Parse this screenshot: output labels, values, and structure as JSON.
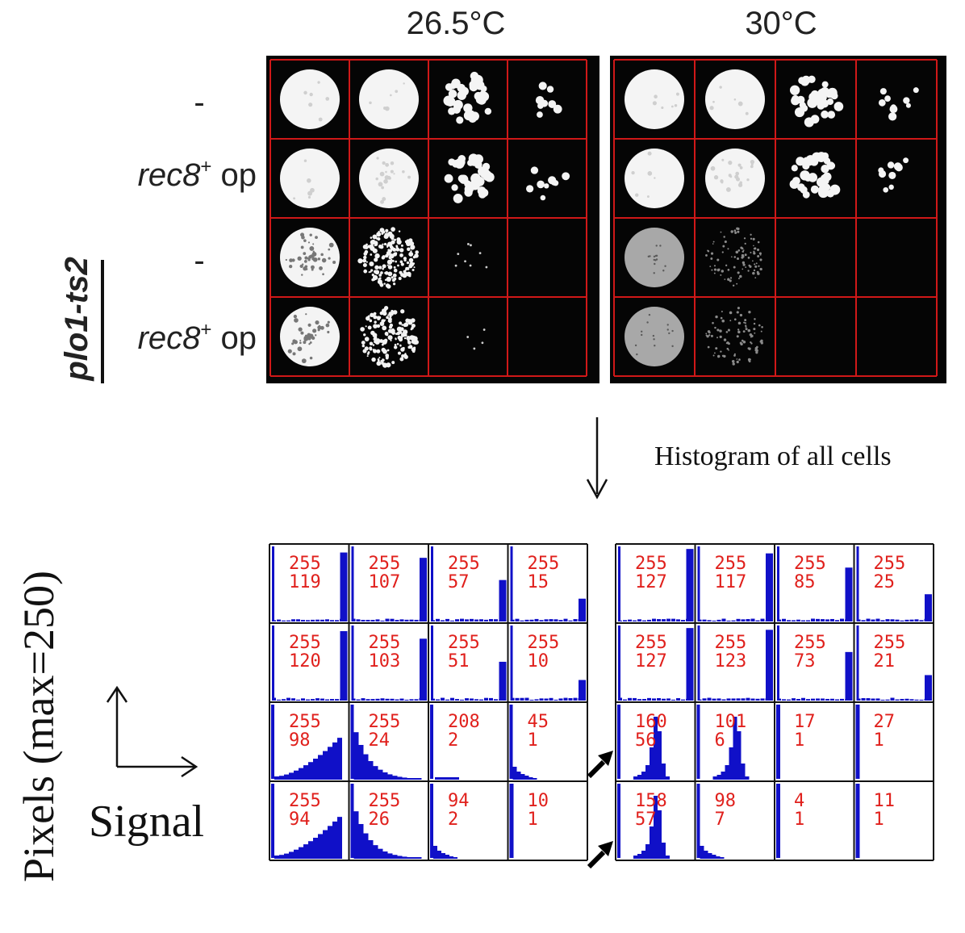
{
  "figure": {
    "temperatures": [
      "26.5°C",
      "30°C"
    ],
    "row_labels": [
      {
        "text": "-",
        "strain": "",
        "superscript": ""
      },
      {
        "text": "rec8",
        "strain": "",
        "superscript": "+",
        "suffix": " op"
      },
      {
        "text": "-",
        "strain": "plo1-ts2",
        "superscript": ""
      },
      {
        "text": "rec8",
        "strain": "plo1-ts2",
        "superscript": "+",
        "suffix": " op"
      }
    ],
    "strain_label": "plo1-ts2",
    "arrow_caption": "Histogram of all cells",
    "axis_label_y": "Pixels (max=250)",
    "axis_label_x": "Signal"
  },
  "plates": [
    {
      "temperature": "26.5°C",
      "spots": [
        [
          "full-smooth",
          "full-smooth",
          "colonies-many",
          "colonies-few"
        ],
        [
          "full-smooth",
          "full-speckled",
          "colonies-many",
          "colonies-few"
        ],
        [
          "full-textured",
          "speckled-dense",
          "sparse-dots",
          "empty"
        ],
        [
          "full-textured",
          "speckled-dense",
          "faint-dots",
          "empty"
        ]
      ]
    },
    {
      "temperature": "30°C",
      "spots": [
        [
          "full-smooth",
          "full-smooth",
          "colonies-many",
          "colonies-few"
        ],
        [
          "full-smooth",
          "full-speckled",
          "colonies-many",
          "colonies-few"
        ],
        [
          "full-grey",
          "speckled-faint",
          "empty",
          "empty"
        ],
        [
          "full-grey",
          "speckled-faint",
          "empty",
          "empty"
        ]
      ]
    }
  ],
  "histograms": [
    {
      "temperature": "26.5°C",
      "cells": [
        [
          {
            "max": "255",
            "count": "119"
          },
          {
            "max": "255",
            "count": "107"
          },
          {
            "max": "255",
            "count": "57"
          },
          {
            "max": "255",
            "count": "15"
          }
        ],
        [
          {
            "max": "255",
            "count": "120"
          },
          {
            "max": "255",
            "count": "103"
          },
          {
            "max": "255",
            "count": "51"
          },
          {
            "max": "255",
            "count": "10"
          }
        ],
        [
          {
            "max": "255",
            "count": "98"
          },
          {
            "max": "255",
            "count": "24"
          },
          {
            "max": "208",
            "count": "2"
          },
          {
            "max": "45",
            "count": "1"
          }
        ],
        [
          {
            "max": "255",
            "count": "94"
          },
          {
            "max": "255",
            "count": "26"
          },
          {
            "max": "94",
            "count": "2"
          },
          {
            "max": "10",
            "count": "1"
          }
        ]
      ]
    },
    {
      "temperature": "30°C",
      "cells": [
        [
          {
            "max": "255",
            "count": "127"
          },
          {
            "max": "255",
            "count": "117"
          },
          {
            "max": "255",
            "count": "85"
          },
          {
            "max": "255",
            "count": "25"
          }
        ],
        [
          {
            "max": "255",
            "count": "127"
          },
          {
            "max": "255",
            "count": "123"
          },
          {
            "max": "255",
            "count": "73"
          },
          {
            "max": "255",
            "count": "21"
          }
        ],
        [
          {
            "max": "160",
            "count": "56"
          },
          {
            "max": "101",
            "count": "6"
          },
          {
            "max": "17",
            "count": "1"
          },
          {
            "max": "27",
            "count": "1"
          }
        ],
        [
          {
            "max": "158",
            "count": "57"
          },
          {
            "max": "98",
            "count": "7"
          },
          {
            "max": "4",
            "count": "1"
          },
          {
            "max": "11",
            "count": "1"
          }
        ]
      ]
    }
  ],
  "colors": {
    "grid_red": "#d01818",
    "plate_black": "#050505",
    "hist_blue": "#1010c8",
    "hist_text_red": "#e0201c",
    "colony_white": "#f4f4f4",
    "colony_grey": "#a8a8a8"
  }
}
